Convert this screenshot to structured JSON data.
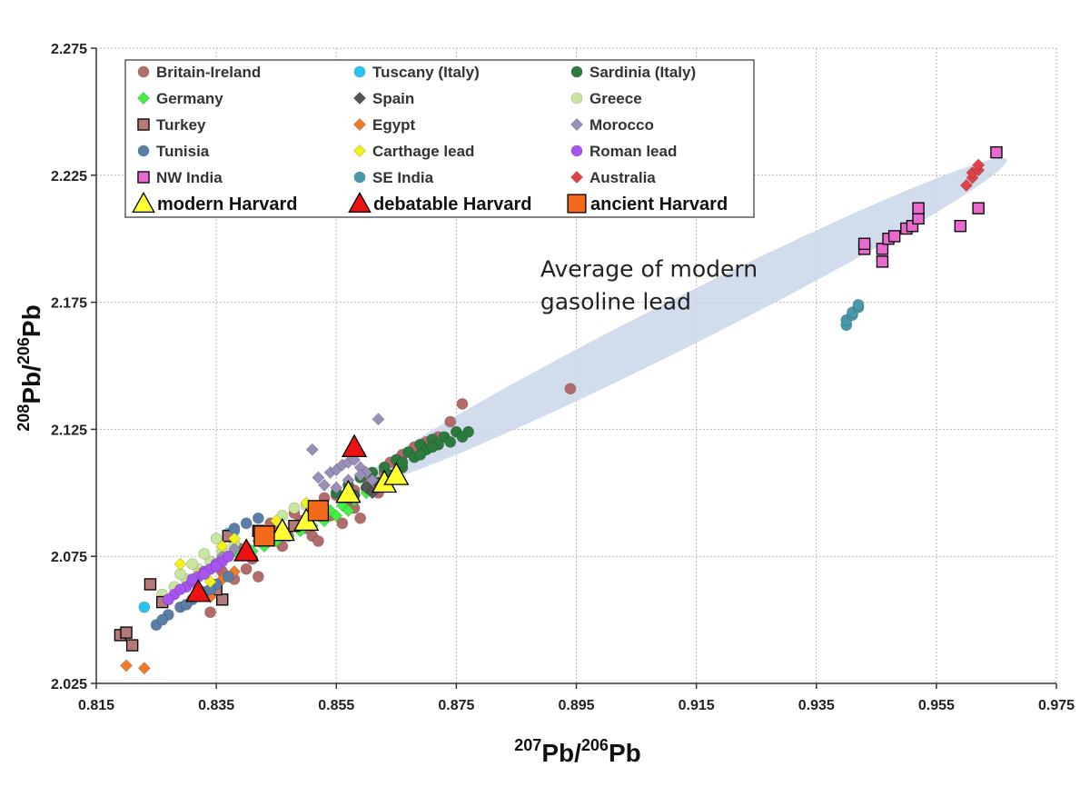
{
  "chart_data": {
    "type": "scatter",
    "xlim": [
      0.815,
      0.975
    ],
    "ylim": [
      2.025,
      2.275
    ],
    "x_ticks": [
      "0.815",
      "0.835",
      "0.855",
      "0.875",
      "0.895",
      "0.915",
      "0.935",
      "0.955",
      "0.975"
    ],
    "y_ticks": [
      "2.275",
      "2.225",
      "2.175",
      "2.125",
      "2.075",
      "2.025"
    ],
    "xlabel": {
      "sup1": "207",
      "base1": "Pb/",
      "sup2": "206",
      "base2": "Pb"
    },
    "ylabel": {
      "sup1": "208",
      "base1": "Pb/",
      "sup2": "206",
      "base2": "Pb"
    },
    "grid": true,
    "legend_position": "top-left",
    "annotation": {
      "line1": "Average of modern",
      "line2": "gasoline lead",
      "x": 0.889,
      "y": 2.185
    },
    "gasoline_band": {
      "from": [
        0.862,
        2.107
      ],
      "to": [
        0.964,
        2.228
      ]
    },
    "series": [
      {
        "name": "Britain-Ireland",
        "marker": "circle",
        "color": "#b46b6b",
        "points": [
          [
            0.832,
            2.062
          ],
          [
            0.836,
            2.069
          ],
          [
            0.839,
            2.078
          ],
          [
            0.841,
            2.074
          ],
          [
            0.843,
            2.081
          ],
          [
            0.845,
            2.085
          ],
          [
            0.847,
            2.083
          ],
          [
            0.849,
            2.089
          ],
          [
            0.851,
            2.083
          ],
          [
            0.853,
            2.093
          ],
          [
            0.855,
            2.099
          ],
          [
            0.856,
            2.088
          ],
          [
            0.858,
            2.101
          ],
          [
            0.86,
            2.106
          ],
          [
            0.862,
            2.1
          ],
          [
            0.864,
            2.112
          ],
          [
            0.866,
            2.115
          ],
          [
            0.868,
            2.118
          ],
          [
            0.87,
            2.12
          ],
          [
            0.872,
            2.122
          ],
          [
            0.874,
            2.128
          ],
          [
            0.876,
            2.135
          ],
          [
            0.894,
            2.141
          ],
          [
            0.834,
            2.053
          ],
          [
            0.838,
            2.066
          ],
          [
            0.84,
            2.07
          ],
          [
            0.842,
            2.067
          ],
          [
            0.846,
            2.079
          ],
          [
            0.85,
            2.086
          ],
          [
            0.852,
            2.081
          ],
          [
            0.854,
            2.091
          ],
          [
            0.857,
            2.097
          ],
          [
            0.859,
            2.09
          ],
          [
            0.861,
            2.103
          ],
          [
            0.863,
            2.108
          ],
          [
            0.837,
            2.075
          ],
          [
            0.844,
            2.088
          ],
          [
            0.848,
            2.092
          ],
          [
            0.853,
            2.098
          ],
          [
            0.858,
            2.094
          ]
        ]
      },
      {
        "name": "Tuscany (Italy)",
        "marker": "circle",
        "color": "#2ac3f0",
        "points": [
          [
            0.823,
            2.055
          ],
          [
            0.837,
            2.084
          ],
          [
            0.838,
            2.085
          ]
        ]
      },
      {
        "name": "Sardinia (Italy)",
        "marker": "circle",
        "color": "#2c7a3c",
        "points": [
          [
            0.855,
            2.1
          ],
          [
            0.857,
            2.103
          ],
          [
            0.859,
            2.106
          ],
          [
            0.861,
            2.108
          ],
          [
            0.863,
            2.11
          ],
          [
            0.865,
            2.113
          ],
          [
            0.867,
            2.116
          ],
          [
            0.869,
            2.119
          ],
          [
            0.871,
            2.121
          ],
          [
            0.873,
            2.122
          ],
          [
            0.875,
            2.124
          ],
          [
            0.877,
            2.124
          ],
          [
            0.862,
            2.104
          ],
          [
            0.864,
            2.107
          ],
          [
            0.866,
            2.11
          ],
          [
            0.868,
            2.114
          ],
          [
            0.87,
            2.117
          ],
          [
            0.872,
            2.119
          ],
          [
            0.874,
            2.12
          ],
          [
            0.876,
            2.122
          ],
          [
            0.86,
            2.102
          ],
          [
            0.858,
            2.099
          ],
          [
            0.866,
            2.112
          ],
          [
            0.869,
            2.115
          ],
          [
            0.871,
            2.118
          ]
        ]
      },
      {
        "name": "Germany",
        "marker": "diamond",
        "color": "#44ee44",
        "points": [
          [
            0.834,
            2.07
          ],
          [
            0.836,
            2.074
          ],
          [
            0.838,
            2.077
          ],
          [
            0.84,
            2.079
          ],
          [
            0.842,
            2.081
          ],
          [
            0.844,
            2.083
          ],
          [
            0.846,
            2.085
          ],
          [
            0.848,
            2.087
          ],
          [
            0.85,
            2.089
          ],
          [
            0.852,
            2.091
          ],
          [
            0.854,
            2.093
          ],
          [
            0.856,
            2.095
          ],
          [
            0.858,
            2.097
          ],
          [
            0.86,
            2.1
          ],
          [
            0.841,
            2.077
          ],
          [
            0.845,
            2.081
          ],
          [
            0.849,
            2.085
          ],
          [
            0.853,
            2.089
          ],
          [
            0.857,
            2.093
          ],
          [
            0.843,
            2.079
          ],
          [
            0.847,
            2.083
          ],
          [
            0.851,
            2.087
          ],
          [
            0.855,
            2.091
          ]
        ]
      },
      {
        "name": "Spain",
        "marker": "diamond",
        "color": "#555555",
        "points": [
          [
            0.86,
            2.102
          ],
          [
            0.862,
            2.104
          ],
          [
            0.858,
            2.099
          ],
          [
            0.861,
            2.1
          ]
        ]
      },
      {
        "name": "Greece",
        "marker": "circle",
        "color": "#c8e6a0",
        "points": [
          [
            0.826,
            2.06
          ],
          [
            0.828,
            2.063
          ],
          [
            0.83,
            2.066
          ],
          [
            0.832,
            2.07
          ],
          [
            0.834,
            2.073
          ],
          [
            0.836,
            2.077
          ],
          [
            0.838,
            2.08
          ],
          [
            0.829,
            2.068
          ],
          [
            0.831,
            2.072
          ],
          [
            0.833,
            2.076
          ],
          [
            0.846,
            2.091
          ],
          [
            0.848,
            2.094
          ],
          [
            0.85,
            2.095
          ],
          [
            0.827,
            2.058
          ],
          [
            0.835,
            2.082
          ]
        ]
      },
      {
        "name": "Turkey",
        "marker": "square",
        "color": "#b47a7a",
        "points": [
          [
            0.819,
            2.044
          ],
          [
            0.82,
            2.045
          ],
          [
            0.821,
            2.04
          ],
          [
            0.824,
            2.064
          ],
          [
            0.826,
            2.057
          ],
          [
            0.836,
            2.058
          ],
          [
            0.837,
            2.083
          ],
          [
            0.842,
            2.085
          ],
          [
            0.848,
            2.087
          ],
          [
            0.835,
            2.062
          ]
        ]
      },
      {
        "name": "Egypt",
        "marker": "diamond",
        "color": "#f07a2a",
        "points": [
          [
            0.82,
            2.032
          ],
          [
            0.823,
            2.031
          ],
          [
            0.834,
            2.059
          ],
          [
            0.836,
            2.066
          ],
          [
            0.838,
            2.069
          ]
        ]
      },
      {
        "name": "Morocco",
        "marker": "diamond",
        "color": "#9a8fb8",
        "points": [
          [
            0.852,
            2.106
          ],
          [
            0.854,
            2.108
          ],
          [
            0.855,
            2.109
          ],
          [
            0.856,
            2.111
          ],
          [
            0.857,
            2.112
          ],
          [
            0.858,
            2.113
          ],
          [
            0.859,
            2.11
          ],
          [
            0.86,
            2.108
          ],
          [
            0.853,
            2.103
          ],
          [
            0.851,
            2.117
          ],
          [
            0.862,
            2.129
          ],
          [
            0.855,
            2.102
          ],
          [
            0.857,
            2.105
          ],
          [
            0.859,
            2.107
          ],
          [
            0.861,
            2.105
          ],
          [
            0.836,
            2.075
          ],
          [
            0.838,
            2.078
          ]
        ]
      },
      {
        "name": "Tunisia",
        "marker": "circle",
        "color": "#5a7ea8",
        "points": [
          [
            0.825,
            2.048
          ],
          [
            0.827,
            2.052
          ],
          [
            0.829,
            2.055
          ],
          [
            0.831,
            2.058
          ],
          [
            0.833,
            2.061
          ],
          [
            0.835,
            2.064
          ],
          [
            0.837,
            2.067
          ],
          [
            0.826,
            2.05
          ],
          [
            0.83,
            2.056
          ],
          [
            0.834,
            2.062
          ],
          [
            0.838,
            2.086
          ],
          [
            0.84,
            2.088
          ],
          [
            0.842,
            2.09
          ]
        ]
      },
      {
        "name": "Carthage lead",
        "marker": "diamond",
        "color": "#f2f21a",
        "points": [
          [
            0.829,
            2.072
          ],
          [
            0.832,
            2.068
          ],
          [
            0.834,
            2.065
          ],
          [
            0.836,
            2.079
          ],
          [
            0.838,
            2.082
          ],
          [
            0.845,
            2.089
          ],
          [
            0.85,
            2.096
          ],
          [
            0.853,
            2.093
          ]
        ]
      },
      {
        "name": "Roman lead",
        "marker": "circle",
        "color": "#a855f0",
        "points": [
          [
            0.828,
            2.06
          ],
          [
            0.83,
            2.063
          ],
          [
            0.831,
            2.065
          ],
          [
            0.832,
            2.067
          ],
          [
            0.833,
            2.069
          ],
          [
            0.834,
            2.07
          ],
          [
            0.835,
            2.072
          ],
          [
            0.836,
            2.073
          ],
          [
            0.837,
            2.075
          ],
          [
            0.829,
            2.062
          ],
          [
            0.831,
            2.066
          ],
          [
            0.833,
            2.068
          ],
          [
            0.835,
            2.071
          ],
          [
            0.827,
            2.058
          ]
        ]
      },
      {
        "name": "NW India",
        "marker": "square",
        "color": "#e86ad0",
        "points": [
          [
            0.943,
            2.196
          ],
          [
            0.943,
            2.198
          ],
          [
            0.946,
            2.191
          ],
          [
            0.946,
            2.196
          ],
          [
            0.947,
            2.2
          ],
          [
            0.948,
            2.201
          ],
          [
            0.95,
            2.204
          ],
          [
            0.951,
            2.205
          ],
          [
            0.952,
            2.208
          ],
          [
            0.952,
            2.212
          ],
          [
            0.959,
            2.205
          ],
          [
            0.962,
            2.212
          ],
          [
            0.965,
            2.234
          ]
        ]
      },
      {
        "name": "SE India",
        "marker": "circle",
        "color": "#4a98ac",
        "points": [
          [
            0.94,
            2.166
          ],
          [
            0.94,
            2.168
          ],
          [
            0.941,
            2.17
          ],
          [
            0.941,
            2.171
          ],
          [
            0.942,
            2.173
          ],
          [
            0.942,
            2.174
          ]
        ]
      },
      {
        "name": "Australia",
        "marker": "diamond",
        "color": "#e0424a",
        "points": [
          [
            0.96,
            2.221
          ],
          [
            0.961,
            2.224
          ],
          [
            0.961,
            2.226
          ],
          [
            0.962,
            2.227
          ],
          [
            0.962,
            2.229
          ]
        ]
      },
      {
        "name": "modern Harvard",
        "marker": "triangle",
        "color": "#ffff33",
        "points": [
          [
            0.846,
            2.085
          ],
          [
            0.85,
            2.089
          ],
          [
            0.857,
            2.1
          ],
          [
            0.863,
            2.104
          ],
          [
            0.865,
            2.107
          ]
        ]
      },
      {
        "name": "debatable Harvard",
        "marker": "triangle",
        "color": "#ee1111",
        "points": [
          [
            0.832,
            2.061
          ],
          [
            0.84,
            2.077
          ],
          [
            0.858,
            2.118
          ]
        ]
      },
      {
        "name": "ancient Harvard",
        "marker": "square",
        "color": "#f26a1a",
        "points": [
          [
            0.843,
            2.083
          ],
          [
            0.852,
            2.093
          ]
        ]
      }
    ],
    "legend_rows": [
      [
        0,
        1,
        2
      ],
      [
        3,
        4,
        5
      ],
      [
        6,
        7,
        8
      ],
      [
        9,
        10,
        11
      ],
      [
        12,
        13,
        14
      ],
      [
        15,
        16,
        17
      ]
    ]
  }
}
